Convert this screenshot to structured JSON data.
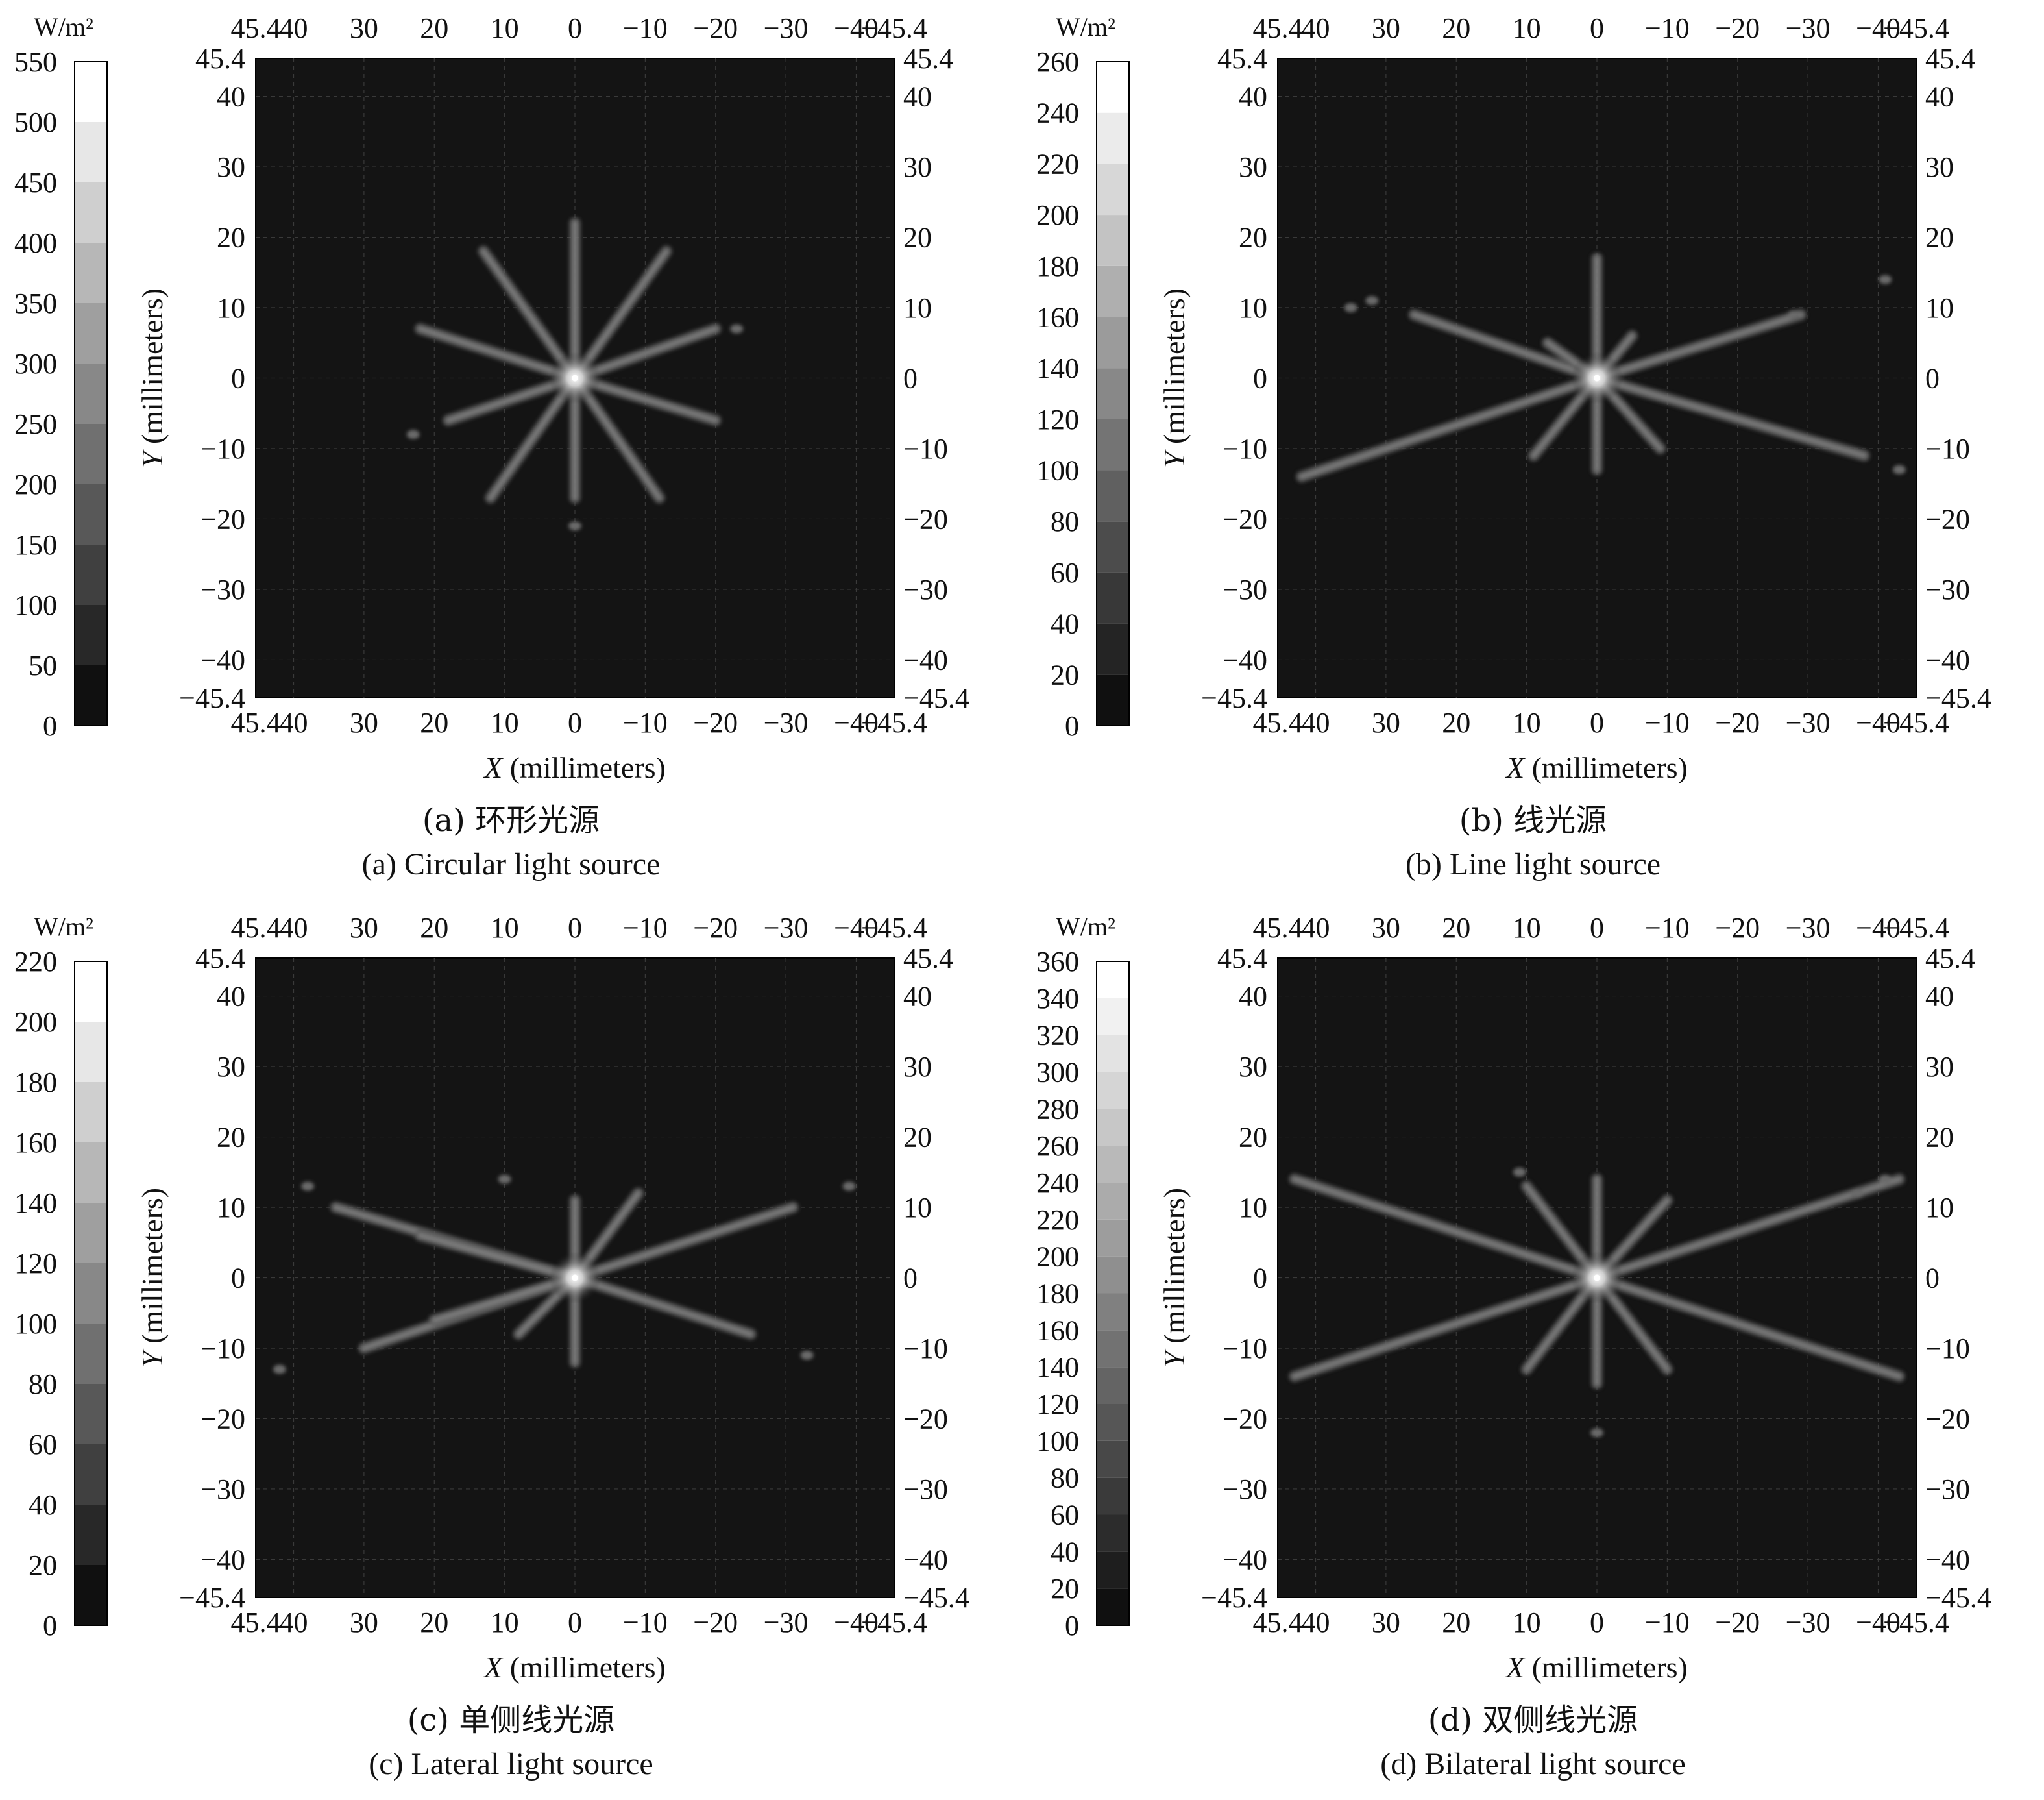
{
  "figure": {
    "panels": [
      {
        "id": "a",
        "caption_cn": "(a) 环形光源",
        "caption_en": "(a) Circular light source"
      },
      {
        "id": "b",
        "caption_cn": "(b) 线光源",
        "caption_en": "(b) Line light source"
      },
      {
        "id": "c",
        "caption_cn": "(c) 单侧线光源",
        "caption_en": "(c) Lateral light source"
      },
      {
        "id": "d",
        "caption_cn": "(d) 双侧线光源",
        "caption_en": "(d) Bilateral light source"
      }
    ]
  },
  "chart_data": [
    {
      "type": "heatmap",
      "panel": "a",
      "colorbar": {
        "unit": "W/m²",
        "ticks": [
          0,
          50,
          100,
          150,
          200,
          250,
          300,
          350,
          400,
          450,
          500,
          550
        ],
        "range": [
          0,
          550
        ]
      },
      "x_axis": {
        "label_italic": "X",
        "label": " (millimeters)",
        "ticks": [
          45.4,
          40,
          30,
          20,
          10,
          0,
          -10,
          -20,
          -30,
          -40,
          -45.4
        ],
        "range": [
          45.4,
          -45.4
        ]
      },
      "y_axis": {
        "label_italic": "Y",
        "label": " (millimeters)",
        "ticks": [
          45.4,
          40,
          30,
          20,
          10,
          0,
          -10,
          -20,
          -30,
          -40,
          -45.4
        ],
        "range": [
          -45.4,
          45.4
        ]
      },
      "peak_irradiance": 550,
      "center": [
        0,
        0
      ],
      "rays": [
        {
          "x": 0,
          "y": 22
        },
        {
          "x": 0,
          "y": -17
        },
        {
          "x": 13,
          "y": 18
        },
        {
          "x": -13,
          "y": 18
        },
        {
          "x": 22,
          "y": 7
        },
        {
          "x": -20,
          "y": 7
        },
        {
          "x": 18,
          "y": -6
        },
        {
          "x": -20,
          "y": -6
        },
        {
          "x": 12,
          "y": -17
        },
        {
          "x": -12,
          "y": -17
        }
      ],
      "spots": [
        {
          "x": 0,
          "y": -21
        },
        {
          "x": -23,
          "y": 7
        },
        {
          "x": 23,
          "y": -8
        }
      ]
    },
    {
      "type": "heatmap",
      "panel": "b",
      "colorbar": {
        "unit": "W/m²",
        "ticks": [
          0,
          20,
          40,
          60,
          80,
          100,
          120,
          140,
          160,
          180,
          200,
          220,
          240,
          260
        ],
        "range": [
          0,
          260
        ]
      },
      "x_axis": {
        "label_italic": "X",
        "label": " (millimeters)",
        "ticks": [
          45.4,
          40,
          30,
          20,
          10,
          0,
          -10,
          -20,
          -30,
          -40,
          -45.4
        ],
        "range": [
          45.4,
          -45.4
        ]
      },
      "y_axis": {
        "label_italic": "Y",
        "label": " (millimeters)",
        "ticks": [
          45.4,
          40,
          30,
          20,
          10,
          0,
          -10,
          -20,
          -30,
          -40,
          -45.4
        ],
        "range": [
          -45.4,
          45.4
        ]
      },
      "peak_irradiance": 260,
      "center": [
        0,
        0
      ],
      "rays": [
        {
          "x": 0,
          "y": 17
        },
        {
          "x": 0,
          "y": -13
        },
        {
          "x": 26,
          "y": 9
        },
        {
          "x": -38,
          "y": -11
        },
        {
          "x": 42,
          "y": -14
        },
        {
          "x": -29,
          "y": 9
        },
        {
          "x": 9,
          "y": -11
        },
        {
          "x": -9,
          "y": -10
        },
        {
          "x": 7,
          "y": 5
        },
        {
          "x": -5,
          "y": 6
        }
      ],
      "spots": [
        {
          "x": 32,
          "y": 11
        },
        {
          "x": 35,
          "y": 10
        },
        {
          "x": -28,
          "y": 9
        },
        {
          "x": -41,
          "y": 14
        },
        {
          "x": -43,
          "y": -13
        }
      ]
    },
    {
      "type": "heatmap",
      "panel": "c",
      "colorbar": {
        "unit": "W/m²",
        "ticks": [
          0,
          20,
          40,
          60,
          80,
          100,
          120,
          140,
          160,
          180,
          200,
          220
        ],
        "range": [
          0,
          220
        ]
      },
      "x_axis": {
        "label_italic": "X",
        "label": " (millimeters)",
        "ticks": [
          45.4,
          40,
          30,
          20,
          10,
          0,
          -10,
          -20,
          -30,
          -40,
          -45.4
        ],
        "range": [
          45.4,
          -45.4
        ]
      },
      "y_axis": {
        "label_italic": "Y",
        "label": " (millimeters)",
        "ticks": [
          45.4,
          40,
          30,
          20,
          10,
          0,
          -10,
          -20,
          -30,
          -40,
          -45.4
        ],
        "range": [
          -45.4,
          45.4
        ]
      },
      "peak_irradiance": 220,
      "center": [
        0,
        0
      ],
      "rays": [
        {
          "x": 0,
          "y": 11
        },
        {
          "x": 0,
          "y": -12
        },
        {
          "x": -9,
          "y": 12
        },
        {
          "x": 8,
          "y": -8
        },
        {
          "x": 34,
          "y": 10
        },
        {
          "x": -31,
          "y": 10
        },
        {
          "x": 30,
          "y": -10
        },
        {
          "x": -25,
          "y": -8
        },
        {
          "x": 22,
          "y": 6
        },
        {
          "x": 20,
          "y": -6
        }
      ],
      "spots": [
        {
          "x": 42,
          "y": -13
        },
        {
          "x": 38,
          "y": 13
        },
        {
          "x": -33,
          "y": -11
        },
        {
          "x": -39,
          "y": 13
        },
        {
          "x": 10,
          "y": 14
        }
      ]
    },
    {
      "type": "heatmap",
      "panel": "d",
      "colorbar": {
        "unit": "W/m²",
        "ticks": [
          0,
          20,
          40,
          60,
          80,
          100,
          120,
          140,
          160,
          180,
          200,
          220,
          240,
          260,
          280,
          300,
          320,
          340,
          360
        ],
        "range": [
          0,
          360
        ]
      },
      "x_axis": {
        "label_italic": "X",
        "label": " (millimeters)",
        "ticks": [
          45.4,
          40,
          30,
          20,
          10,
          0,
          -10,
          -20,
          -30,
          -40,
          -45.4
        ],
        "range": [
          45.4,
          -45.4
        ]
      },
      "y_axis": {
        "label_italic": "Y",
        "label": " (millimeters)",
        "ticks": [
          45.4,
          40,
          30,
          20,
          10,
          0,
          -10,
          -20,
          -30,
          -40,
          -45.4
        ],
        "range": [
          -45.4,
          45.4
        ]
      },
      "peak_irradiance": 360,
      "center": [
        0,
        0
      ],
      "rays": [
        {
          "x": 0,
          "y": 14
        },
        {
          "x": 0,
          "y": -15
        },
        {
          "x": 43,
          "y": 14
        },
        {
          "x": -43,
          "y": 14
        },
        {
          "x": 43,
          "y": -14
        },
        {
          "x": -43,
          "y": -14
        },
        {
          "x": 10,
          "y": 13
        },
        {
          "x": -10,
          "y": 11
        },
        {
          "x": 10,
          "y": -13
        },
        {
          "x": -10,
          "y": -13
        }
      ],
      "spots": [
        {
          "x": 0,
          "y": -22
        },
        {
          "x": 11,
          "y": 15
        },
        {
          "x": -37,
          "y": 12
        },
        {
          "x": -41,
          "y": 14
        }
      ]
    }
  ]
}
